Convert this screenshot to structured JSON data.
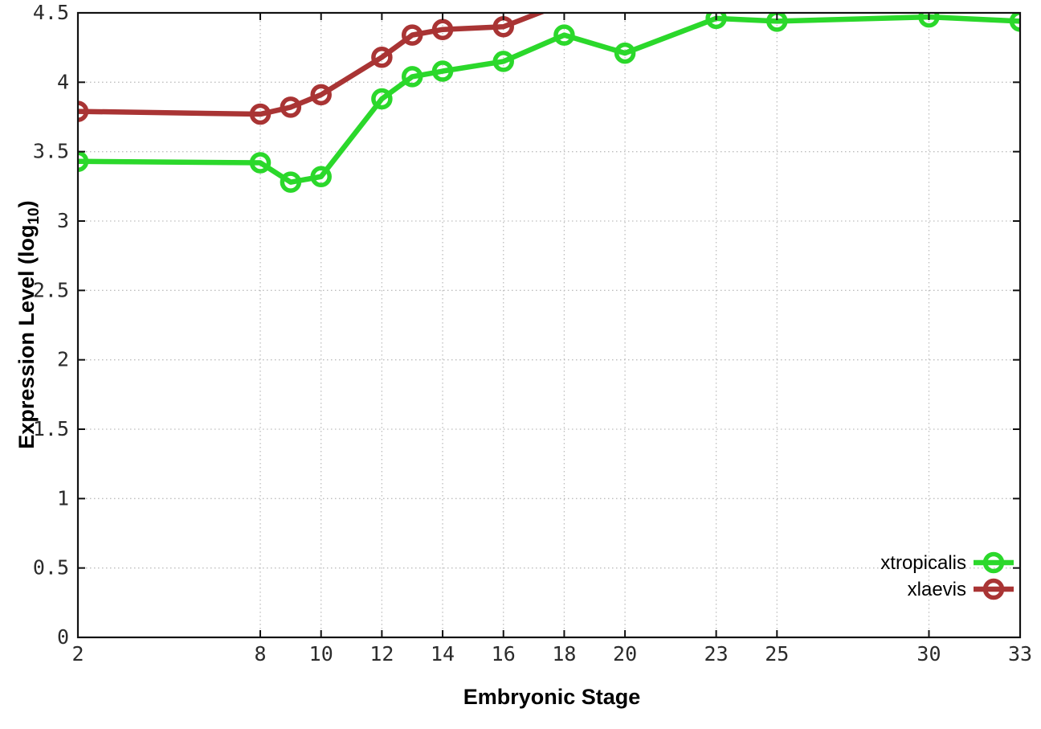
{
  "chart_data": {
    "type": "line",
    "title": "",
    "xlabel": "Embryonic Stage",
    "ylabel": "Expression Level (log10)",
    "ylabel_parts": {
      "prefix": "Expression Level (log",
      "sub": "10",
      "suffix": ")"
    },
    "xlim": [
      2,
      33
    ],
    "ylim": [
      0,
      4.5
    ],
    "x_ticks": [
      2,
      8,
      10,
      12,
      14,
      16,
      18,
      20,
      23,
      25,
      30,
      33
    ],
    "y_ticks": [
      0,
      0.5,
      1,
      1.5,
      2,
      2.5,
      3,
      3.5,
      4,
      4.5
    ],
    "grid": true,
    "grid_style": "dotted",
    "legend_position": "bottom-right-inside",
    "series": [
      {
        "name": "xtropicalis",
        "color": "#2bd82b",
        "marker": "open-circle",
        "x": [
          2,
          8,
          9,
          10,
          12,
          13,
          14,
          16,
          18,
          20,
          23,
          25,
          30,
          33
        ],
        "y": [
          3.43,
          3.42,
          3.28,
          3.32,
          3.88,
          4.04,
          4.08,
          4.15,
          4.34,
          4.21,
          4.46,
          4.44,
          4.47,
          4.44
        ]
      },
      {
        "name": "xlaevis",
        "color": "#a93434",
        "marker": "open-circle",
        "x": [
          2,
          8,
          9,
          10,
          12,
          13,
          14,
          16,
          18
        ],
        "y": [
          3.79,
          3.77,
          3.82,
          3.91,
          4.18,
          4.34,
          4.38,
          4.4,
          4.57
        ]
      }
    ],
    "colors": {
      "border": "#111111",
      "grid": "#bdbdbd",
      "tick_text": "#2b2b2b",
      "legend_text": "#000000",
      "background": "#ffffff"
    }
  }
}
